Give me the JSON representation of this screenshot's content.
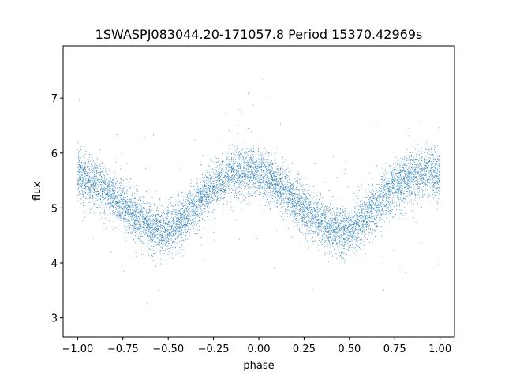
{
  "chart_data": {
    "type": "scatter",
    "title": "1SWASPJ083044.20-171057.8 Period 15370.42969s",
    "xlabel": "phase",
    "ylabel": "flux",
    "xlim": [
      -1.08,
      1.08
    ],
    "ylim": [
      2.65,
      7.95
    ],
    "xticks": [
      -1.0,
      -0.75,
      -0.5,
      -0.25,
      0.0,
      0.25,
      0.5,
      0.75,
      1.0
    ],
    "xtick_labels": [
      "−1.00",
      "−0.75",
      "−0.50",
      "−0.25",
      "0.00",
      "0.25",
      "0.50",
      "0.75",
      "1.00"
    ],
    "yticks": [
      3,
      4,
      5,
      6,
      7
    ],
    "ytick_labels": [
      "3",
      "4",
      "5",
      "6",
      "7"
    ],
    "grid": false,
    "marker_color": "#1f77b4",
    "series": [
      {
        "phase_range": [
          -1.0,
          1.0
        ],
        "trend": [
          {
            "x": -1.0,
            "y": 5.6
          },
          {
            "x": -0.9,
            "y": 5.45
          },
          {
            "x": -0.8,
            "y": 5.2
          },
          {
            "x": -0.7,
            "y": 4.9
          },
          {
            "x": -0.6,
            "y": 4.65
          },
          {
            "x": -0.52,
            "y": 4.58
          },
          {
            "x": -0.45,
            "y": 4.68
          },
          {
            "x": -0.35,
            "y": 5.05
          },
          {
            "x": -0.25,
            "y": 5.4
          },
          {
            "x": -0.15,
            "y": 5.6
          },
          {
            "x": -0.05,
            "y": 5.68
          },
          {
            "x": 0.0,
            "y": 5.65
          },
          {
            "x": 0.1,
            "y": 5.45
          },
          {
            "x": 0.2,
            "y": 5.15
          },
          {
            "x": 0.3,
            "y": 4.85
          },
          {
            "x": 0.4,
            "y": 4.62
          },
          {
            "x": 0.48,
            "y": 4.58
          },
          {
            "x": 0.55,
            "y": 4.7
          },
          {
            "x": 0.65,
            "y": 5.05
          },
          {
            "x": 0.75,
            "y": 5.4
          },
          {
            "x": 0.85,
            "y": 5.6
          },
          {
            "x": 0.95,
            "y": 5.66
          },
          {
            "x": 1.0,
            "y": 5.62
          }
        ],
        "scatter_sd": 0.22
      }
    ]
  }
}
